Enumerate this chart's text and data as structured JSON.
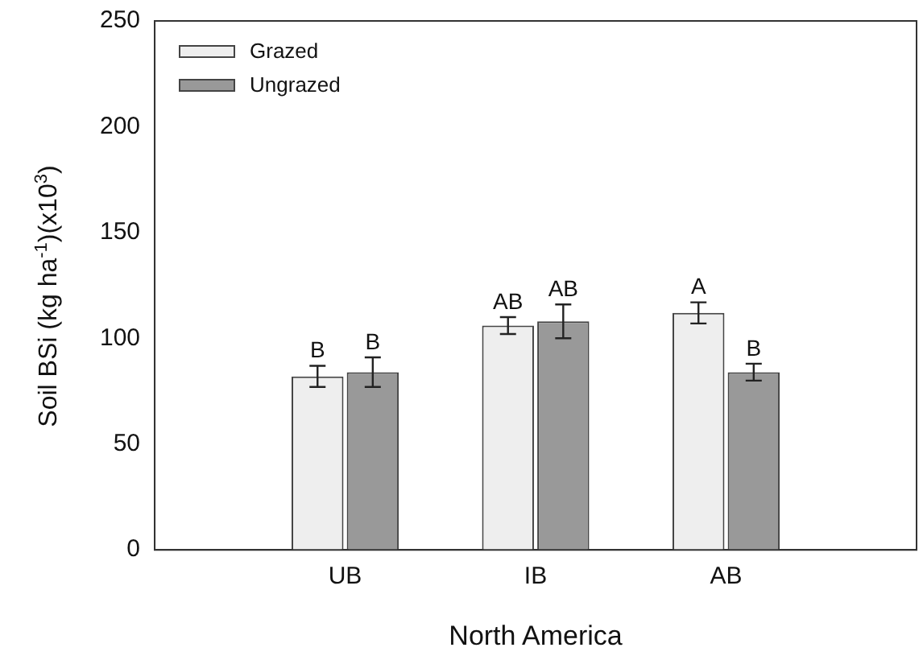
{
  "chart_data": {
    "type": "bar",
    "xlabel": "North America",
    "ylabel": "Soil BSi (kg ha$^{-1}$)(x10$^{3}$)",
    "categories": [
      "UB",
      "IB",
      "AB"
    ],
    "series": [
      {
        "name": "Grazed",
        "color": "#eeeeee",
        "values": [
          82,
          106,
          112
        ],
        "errors": [
          5,
          4,
          5
        ],
        "value_labels": [
          "B",
          "AB",
          "A"
        ]
      },
      {
        "name": "Ungrazed",
        "color": "#999999",
        "values": [
          84,
          108,
          84
        ],
        "errors": [
          7,
          8,
          4
        ],
        "value_labels": [
          "B",
          "AB",
          "B"
        ]
      }
    ],
    "ylim": [
      0,
      250
    ],
    "yticks": [
      0,
      50,
      100,
      150,
      200,
      250
    ],
    "grid": false,
    "legend": "top left"
  }
}
